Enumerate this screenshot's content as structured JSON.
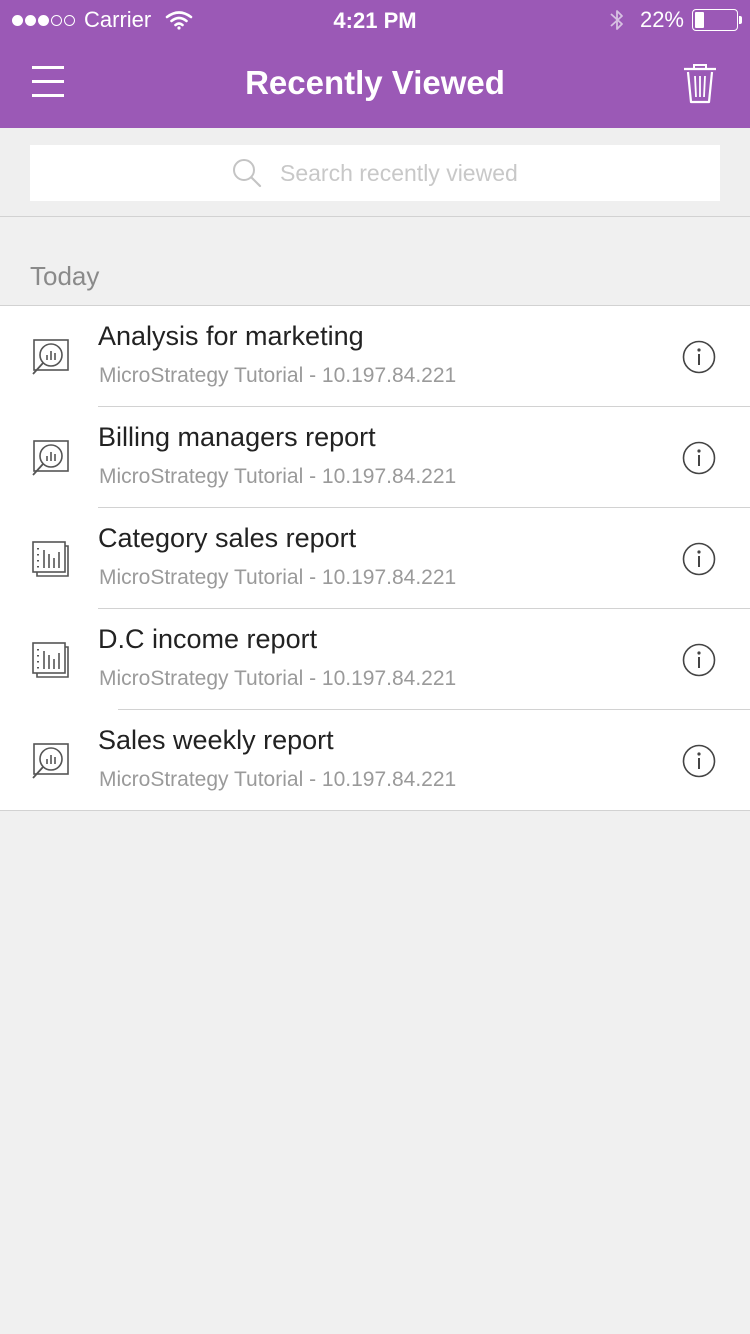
{
  "status_bar": {
    "carrier": "Carrier",
    "time": "4:21 PM",
    "battery": "22%",
    "battery_level": 0.22,
    "signal_bars": 3
  },
  "header": {
    "title": "Recently Viewed",
    "menu_icon": "hamburger-menu-icon",
    "trash_icon": "trash-icon"
  },
  "search": {
    "placeholder": "Search recently viewed",
    "value": ""
  },
  "section": {
    "title": "Today"
  },
  "items": [
    {
      "title": "Analysis for marketing",
      "subtitle": "MicroStrategy Tutorial - 10.197.84.221",
      "icon": "dashboard-analysis-icon"
    },
    {
      "title": "Billing managers report",
      "subtitle": "MicroStrategy Tutorial - 10.197.84.221",
      "icon": "dashboard-analysis-icon"
    },
    {
      "title": "Category sales report",
      "subtitle": "MicroStrategy Tutorial - 10.197.84.221",
      "icon": "grid-report-icon"
    },
    {
      "title": "D.C income report",
      "subtitle": "MicroStrategy Tutorial - 10.197.84.221",
      "icon": "grid-report-icon"
    },
    {
      "title": "Sales weekly report",
      "subtitle": "MicroStrategy Tutorial - 10.197.84.221",
      "icon": "dashboard-analysis-icon"
    }
  ],
  "colors": {
    "accent": "#9b59b6",
    "background": "#f0f0f0",
    "list_background": "#ffffff",
    "separator": "#d2d2d2"
  }
}
